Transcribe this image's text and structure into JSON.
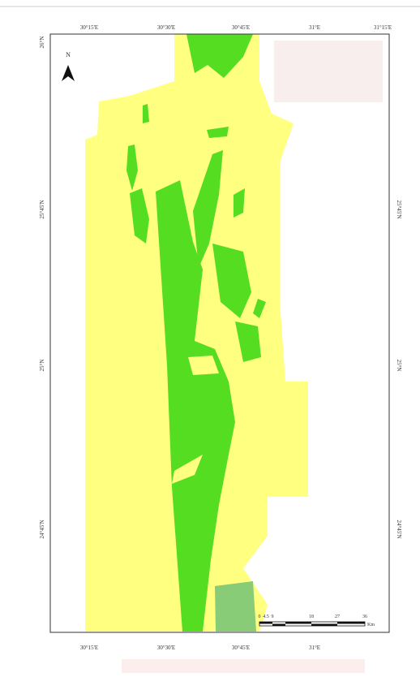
{
  "map": {
    "top_labels": [
      "30°15'E",
      "30°30'E",
      "30°45'E",
      "31°E",
      "31°15'E"
    ],
    "bottom_labels": [
      "30°15'E",
      "30°30'E",
      "30°45'E",
      "31°E"
    ],
    "left_labels": [
      "26°N",
      "25°45'N",
      "25°N",
      "24°45'N"
    ],
    "right_labels": [
      "25°45'N",
      "25°N",
      "24°45'N"
    ],
    "north": "N",
    "scale": {
      "labels": [
        "0",
        "4.5",
        "9",
        "18",
        "27",
        "36"
      ],
      "unit": "Km"
    }
  }
}
